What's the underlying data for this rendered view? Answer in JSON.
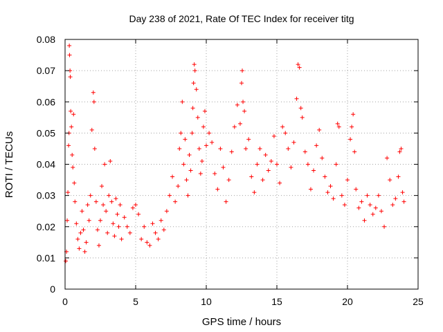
{
  "chart_data": {
    "type": "scatter",
    "title": "Day 238 of 2021, Rate Of TEC Index for receiver titg",
    "xlabel": "GPS time / hours",
    "ylabel": "ROTI / TECUs",
    "xlim": [
      0,
      25
    ],
    "ylim": [
      0,
      0.08
    ],
    "xticks": [
      0,
      5,
      10,
      15,
      20,
      25
    ],
    "xtick_labels": [
      "0",
      "5",
      "10",
      "15",
      "20",
      "25"
    ],
    "yticks": [
      0,
      0.01,
      0.02,
      0.03,
      0.04,
      0.05,
      0.06,
      0.07,
      0.08
    ],
    "ytick_labels": [
      "0",
      "0.01",
      "0.02",
      "0.03",
      "0.04",
      "0.05",
      "0.06",
      "0.07",
      "0.08"
    ],
    "grid": true,
    "grid_style": "dotted",
    "marker": "plus",
    "color": "#ff0000",
    "series": [
      {
        "points": [
          [
            0.05,
            0.009
          ],
          [
            0.1,
            0.012
          ],
          [
            0.15,
            0.022
          ],
          [
            0.2,
            0.031
          ],
          [
            0.25,
            0.046
          ],
          [
            0.28,
            0.05
          ],
          [
            0.3,
            0.078
          ],
          [
            0.32,
            0.075
          ],
          [
            0.35,
            0.07
          ],
          [
            0.37,
            0.068
          ],
          [
            0.4,
            0.057
          ],
          [
            0.45,
            0.052
          ],
          [
            0.5,
            0.043
          ],
          [
            0.55,
            0.039
          ],
          [
            0.6,
            0.056
          ],
          [
            0.65,
            0.034
          ],
          [
            0.7,
            0.028
          ],
          [
            0.8,
            0.021
          ],
          [
            0.9,
            0.016
          ],
          [
            1.0,
            0.013
          ],
          [
            1.1,
            0.018
          ],
          [
            1.2,
            0.025
          ],
          [
            1.3,
            0.019
          ],
          [
            1.4,
            0.012
          ],
          [
            1.5,
            0.015
          ],
          [
            1.6,
            0.027
          ],
          [
            1.7,
            0.022
          ],
          [
            1.8,
            0.03
          ],
          [
            1.9,
            0.051
          ],
          [
            2.0,
            0.063
          ],
          [
            2.05,
            0.06
          ],
          [
            2.1,
            0.045
          ],
          [
            2.2,
            0.028
          ],
          [
            2.3,
            0.019
          ],
          [
            2.4,
            0.014
          ],
          [
            2.5,
            0.022
          ],
          [
            2.6,
            0.033
          ],
          [
            2.7,
            0.027
          ],
          [
            2.8,
            0.04
          ],
          [
            2.9,
            0.025
          ],
          [
            3.0,
            0.018
          ],
          [
            3.1,
            0.03
          ],
          [
            3.2,
            0.041
          ],
          [
            3.3,
            0.028
          ],
          [
            3.4,
            0.021
          ],
          [
            3.5,
            0.017
          ],
          [
            3.6,
            0.029
          ],
          [
            3.7,
            0.024
          ],
          [
            3.8,
            0.02
          ],
          [
            3.9,
            0.027
          ],
          [
            4.0,
            0.016
          ],
          [
            4.2,
            0.023
          ],
          [
            4.4,
            0.02
          ],
          [
            4.6,
            0.018
          ],
          [
            4.8,
            0.026
          ],
          [
            5.0,
            0.027
          ],
          [
            5.2,
            0.024
          ],
          [
            5.4,
            0.016
          ],
          [
            5.6,
            0.02
          ],
          [
            5.8,
            0.015
          ],
          [
            6.0,
            0.014
          ],
          [
            6.2,
            0.021
          ],
          [
            6.4,
            0.018
          ],
          [
            6.6,
            0.016
          ],
          [
            6.8,
            0.022
          ],
          [
            7.0,
            0.019
          ],
          [
            7.2,
            0.025
          ],
          [
            7.4,
            0.03
          ],
          [
            7.6,
            0.036
          ],
          [
            7.8,
            0.028
          ],
          [
            8.0,
            0.033
          ],
          [
            8.1,
            0.045
          ],
          [
            8.2,
            0.05
          ],
          [
            8.3,
            0.06
          ],
          [
            8.4,
            0.04
          ],
          [
            8.5,
            0.048
          ],
          [
            8.6,
            0.035
          ],
          [
            8.7,
            0.03
          ],
          [
            8.8,
            0.043
          ],
          [
            8.9,
            0.038
          ],
          [
            9.0,
            0.05
          ],
          [
            9.05,
            0.058
          ],
          [
            9.1,
            0.066
          ],
          [
            9.15,
            0.072
          ],
          [
            9.2,
            0.07
          ],
          [
            9.3,
            0.064
          ],
          [
            9.4,
            0.055
          ],
          [
            9.5,
            0.045
          ],
          [
            9.6,
            0.037
          ],
          [
            9.7,
            0.041
          ],
          [
            9.8,
            0.052
          ],
          [
            9.9,
            0.057
          ],
          [
            10.0,
            0.046
          ],
          [
            10.2,
            0.05
          ],
          [
            10.4,
            0.047
          ],
          [
            10.6,
            0.037
          ],
          [
            10.8,
            0.032
          ],
          [
            11.0,
            0.045
          ],
          [
            11.2,
            0.039
          ],
          [
            11.4,
            0.028
          ],
          [
            11.6,
            0.035
          ],
          [
            11.8,
            0.044
          ],
          [
            12.0,
            0.052
          ],
          [
            12.2,
            0.059
          ],
          [
            12.4,
            0.053
          ],
          [
            12.5,
            0.066
          ],
          [
            12.55,
            0.07
          ],
          [
            12.6,
            0.06
          ],
          [
            12.7,
            0.057
          ],
          [
            12.8,
            0.045
          ],
          [
            13.0,
            0.048
          ],
          [
            13.2,
            0.036
          ],
          [
            13.4,
            0.031
          ],
          [
            13.6,
            0.04
          ],
          [
            13.8,
            0.045
          ],
          [
            14.0,
            0.035
          ],
          [
            14.2,
            0.043
          ],
          [
            14.4,
            0.038
          ],
          [
            14.6,
            0.041
          ],
          [
            14.8,
            0.049
          ],
          [
            15.0,
            0.04
          ],
          [
            15.2,
            0.034
          ],
          [
            15.4,
            0.052
          ],
          [
            15.6,
            0.05
          ],
          [
            15.8,
            0.045
          ],
          [
            16.0,
            0.039
          ],
          [
            16.2,
            0.047
          ],
          [
            16.4,
            0.061
          ],
          [
            16.5,
            0.072
          ],
          [
            16.6,
            0.071
          ],
          [
            16.7,
            0.058
          ],
          [
            16.8,
            0.055
          ],
          [
            17.0,
            0.044
          ],
          [
            17.2,
            0.04
          ],
          [
            17.4,
            0.032
          ],
          [
            17.6,
            0.038
          ],
          [
            17.8,
            0.046
          ],
          [
            18.0,
            0.051
          ],
          [
            18.2,
            0.042
          ],
          [
            18.4,
            0.036
          ],
          [
            18.6,
            0.031
          ],
          [
            18.8,
            0.033
          ],
          [
            19.0,
            0.029
          ],
          [
            19.2,
            0.04
          ],
          [
            19.3,
            0.053
          ],
          [
            19.4,
            0.052
          ],
          [
            19.6,
            0.03
          ],
          [
            19.8,
            0.027
          ],
          [
            20.0,
            0.035
          ],
          [
            20.2,
            0.048
          ],
          [
            20.3,
            0.052
          ],
          [
            20.4,
            0.056
          ],
          [
            20.5,
            0.044
          ],
          [
            20.6,
            0.032
          ],
          [
            20.8,
            0.026
          ],
          [
            21.0,
            0.028
          ],
          [
            21.2,
            0.022
          ],
          [
            21.4,
            0.03
          ],
          [
            21.6,
            0.027
          ],
          [
            21.8,
            0.024
          ],
          [
            22.0,
            0.026
          ],
          [
            22.2,
            0.03
          ],
          [
            22.4,
            0.025
          ],
          [
            22.6,
            0.02
          ],
          [
            22.8,
            0.042
          ],
          [
            23.0,
            0.035
          ],
          [
            23.2,
            0.027
          ],
          [
            23.4,
            0.029
          ],
          [
            23.6,
            0.036
          ],
          [
            23.7,
            0.044
          ],
          [
            23.8,
            0.045
          ],
          [
            23.9,
            0.031
          ],
          [
            24.0,
            0.028
          ]
        ]
      }
    ]
  }
}
